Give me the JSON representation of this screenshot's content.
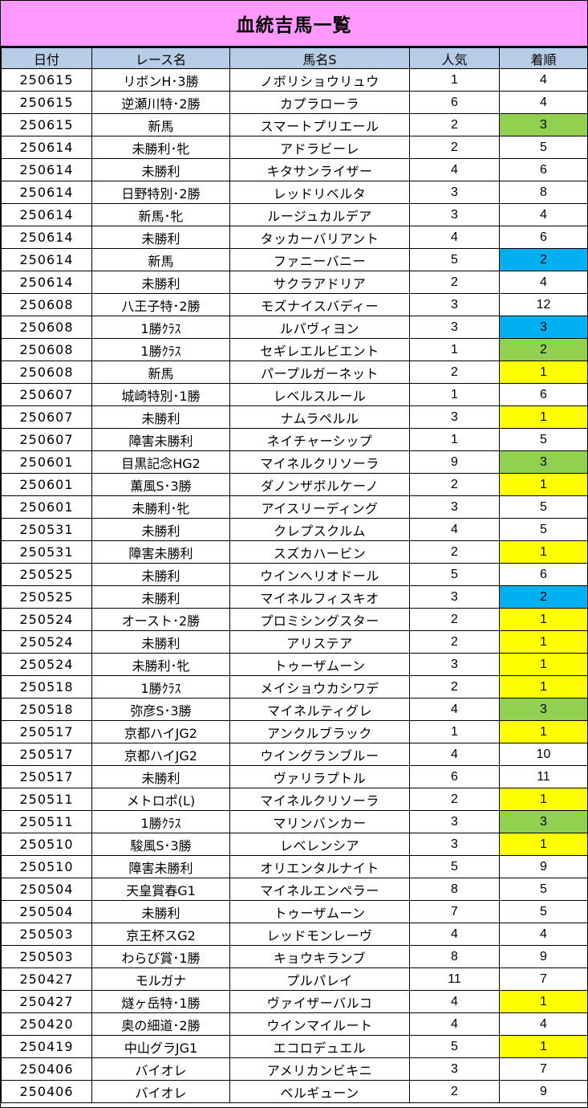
{
  "title": "血統吉馬一覧",
  "colors": {
    "title_bg": "#ff99ff",
    "header_bg": "#b7cde5",
    "green": "#92d050",
    "blue": "#00b0f0",
    "yellow": "#ffff00"
  },
  "headers": {
    "date": "日付",
    "race": "レース名",
    "horse": "馬名S",
    "popularity": "人気",
    "finish": "着順"
  },
  "rows": [
    {
      "date": "250615",
      "race": "リボンH･3勝",
      "horse": "ノボリショウリュウ",
      "pop": "1",
      "rank": "4",
      "hl": ""
    },
    {
      "date": "250615",
      "race": "逆瀬川特･2勝",
      "horse": "カプラローラ",
      "pop": "6",
      "rank": "4",
      "hl": ""
    },
    {
      "date": "250615",
      "race": "新馬",
      "horse": "スマートプリエール",
      "pop": "2",
      "rank": "3",
      "hl": "green"
    },
    {
      "date": "250614",
      "race": "未勝利･牝",
      "horse": "アドラビーレ",
      "pop": "2",
      "rank": "5",
      "hl": ""
    },
    {
      "date": "250614",
      "race": "未勝利",
      "horse": "キタサンライザー",
      "pop": "4",
      "rank": "6",
      "hl": ""
    },
    {
      "date": "250614",
      "race": "日野特別･2勝",
      "horse": "レッドリベルタ",
      "pop": "3",
      "rank": "8",
      "hl": ""
    },
    {
      "date": "250614",
      "race": "新馬･牝",
      "horse": "ルージュカルデア",
      "pop": "3",
      "rank": "4",
      "hl": ""
    },
    {
      "date": "250614",
      "race": "未勝利",
      "horse": "タッカーバリアント",
      "pop": "4",
      "rank": "6",
      "hl": ""
    },
    {
      "date": "250614",
      "race": "新馬",
      "horse": "ファニーバニー",
      "pop": "5",
      "rank": "2",
      "hl": "blue"
    },
    {
      "date": "250614",
      "race": "未勝利",
      "horse": "サクラアドリア",
      "pop": "2",
      "rank": "4",
      "hl": ""
    },
    {
      "date": "250608",
      "race": "八王子特･2勝",
      "horse": "モズナイスバディー",
      "pop": "3",
      "rank": "12",
      "hl": ""
    },
    {
      "date": "250608",
      "race": "1勝ｸﾗｽ",
      "horse": "ルパヴィヨン",
      "pop": "3",
      "rank": "3",
      "hl": "blue"
    },
    {
      "date": "250608",
      "race": "1勝ｸﾗｽ",
      "horse": "セギレエルビエント",
      "pop": "1",
      "rank": "2",
      "hl": "green"
    },
    {
      "date": "250608",
      "race": "新馬",
      "horse": "パープルガーネット",
      "pop": "2",
      "rank": "1",
      "hl": "yellow"
    },
    {
      "date": "250607",
      "race": "城崎特別･1勝",
      "horse": "レベルスルール",
      "pop": "1",
      "rank": "6",
      "hl": ""
    },
    {
      "date": "250607",
      "race": "未勝利",
      "horse": "ナムラペルル",
      "pop": "3",
      "rank": "1",
      "hl": "yellow"
    },
    {
      "date": "250607",
      "race": "障害未勝利",
      "horse": "ネイチャーシップ",
      "pop": "1",
      "rank": "5",
      "hl": ""
    },
    {
      "date": "250601",
      "race": "目黒記念HG2",
      "horse": "マイネルクリソーラ",
      "pop": "9",
      "rank": "3",
      "hl": "green"
    },
    {
      "date": "250601",
      "race": "薫風S･3勝",
      "horse": "ダノンザボルケーノ",
      "pop": "2",
      "rank": "1",
      "hl": "yellow"
    },
    {
      "date": "250601",
      "race": "未勝利･牝",
      "horse": "アイスリーディング",
      "pop": "3",
      "rank": "5",
      "hl": ""
    },
    {
      "date": "250531",
      "race": "未勝利",
      "horse": "クレプスクルム",
      "pop": "4",
      "rank": "5",
      "hl": ""
    },
    {
      "date": "250531",
      "race": "障害未勝利",
      "horse": "スズカハービン",
      "pop": "2",
      "rank": "1",
      "hl": "yellow"
    },
    {
      "date": "250525",
      "race": "未勝利",
      "horse": "ウインヘリオドール",
      "pop": "5",
      "rank": "6",
      "hl": ""
    },
    {
      "date": "250525",
      "race": "未勝利",
      "horse": "マイネルフィスキオ",
      "pop": "3",
      "rank": "2",
      "hl": "blue"
    },
    {
      "date": "250524",
      "race": "オースト･2勝",
      "horse": "プロミシングスター",
      "pop": "2",
      "rank": "1",
      "hl": "yellow"
    },
    {
      "date": "250524",
      "race": "未勝利",
      "horse": "アリステア",
      "pop": "2",
      "rank": "1",
      "hl": "yellow"
    },
    {
      "date": "250524",
      "race": "未勝利･牝",
      "horse": "トゥーザムーン",
      "pop": "3",
      "rank": "1",
      "hl": "yellow"
    },
    {
      "date": "250518",
      "race": "1勝ｸﾗｽ",
      "horse": "メイショウカシワデ",
      "pop": "2",
      "rank": "1",
      "hl": "yellow"
    },
    {
      "date": "250518",
      "race": "弥彦S･3勝",
      "horse": "マイネルティグレ",
      "pop": "4",
      "rank": "3",
      "hl": "green"
    },
    {
      "date": "250517",
      "race": "京都ハイJG2",
      "horse": "アンクルブラック",
      "pop": "1",
      "rank": "1",
      "hl": "yellow"
    },
    {
      "date": "250517",
      "race": "京都ハイJG2",
      "horse": "ウイングランブルー",
      "pop": "4",
      "rank": "10",
      "hl": ""
    },
    {
      "date": "250517",
      "race": "未勝利",
      "horse": "ヴァリラプトル",
      "pop": "6",
      "rank": "11",
      "hl": ""
    },
    {
      "date": "250511",
      "race": "メトロポ(L)",
      "horse": "マイネルクリソーラ",
      "pop": "2",
      "rank": "1",
      "hl": "yellow"
    },
    {
      "date": "250511",
      "race": "1勝ｸﾗｽ",
      "horse": "マリンバンカー",
      "pop": "3",
      "rank": "3",
      "hl": "green"
    },
    {
      "date": "250510",
      "race": "駿風S･3勝",
      "horse": "レベレンシア",
      "pop": "3",
      "rank": "1",
      "hl": "yellow"
    },
    {
      "date": "250510",
      "race": "障害未勝利",
      "horse": "オリエンタルナイト",
      "pop": "5",
      "rank": "9",
      "hl": ""
    },
    {
      "date": "250504",
      "race": "天皇賞春G1",
      "horse": "マイネルエンペラー",
      "pop": "8",
      "rank": "5",
      "hl": ""
    },
    {
      "date": "250504",
      "race": "未勝利",
      "horse": "トゥーザムーン",
      "pop": "7",
      "rank": "5",
      "hl": ""
    },
    {
      "date": "250503",
      "race": "京王杯スG2",
      "horse": "レッドモンレーヴ",
      "pop": "4",
      "rank": "4",
      "hl": ""
    },
    {
      "date": "250503",
      "race": "わらび賞･1勝",
      "horse": "キョウキランブ",
      "pop": "8",
      "rank": "9",
      "hl": ""
    },
    {
      "date": "250427",
      "race": "モルガナ",
      "horse": "プルパレイ",
      "pop": "11",
      "rank": "7",
      "hl": ""
    },
    {
      "date": "250427",
      "race": "燧ヶ岳特･1勝",
      "horse": "ヴァイザーバルコ",
      "pop": "4",
      "rank": "1",
      "hl": "yellow"
    },
    {
      "date": "250420",
      "race": "奥の細道･2勝",
      "horse": "ウインマイルート",
      "pop": "4",
      "rank": "4",
      "hl": ""
    },
    {
      "date": "250419",
      "race": "中山グラJG1",
      "horse": "エコロデュエル",
      "pop": "5",
      "rank": "1",
      "hl": "yellow"
    },
    {
      "date": "250406",
      "race": "バイオレ",
      "horse": "アメリカンビキニ",
      "pop": "3",
      "rank": "7",
      "hl": ""
    },
    {
      "date": "250406",
      "race": "バイオレ",
      "horse": "ベルギューン",
      "pop": "2",
      "rank": "9",
      "hl": ""
    }
  ]
}
